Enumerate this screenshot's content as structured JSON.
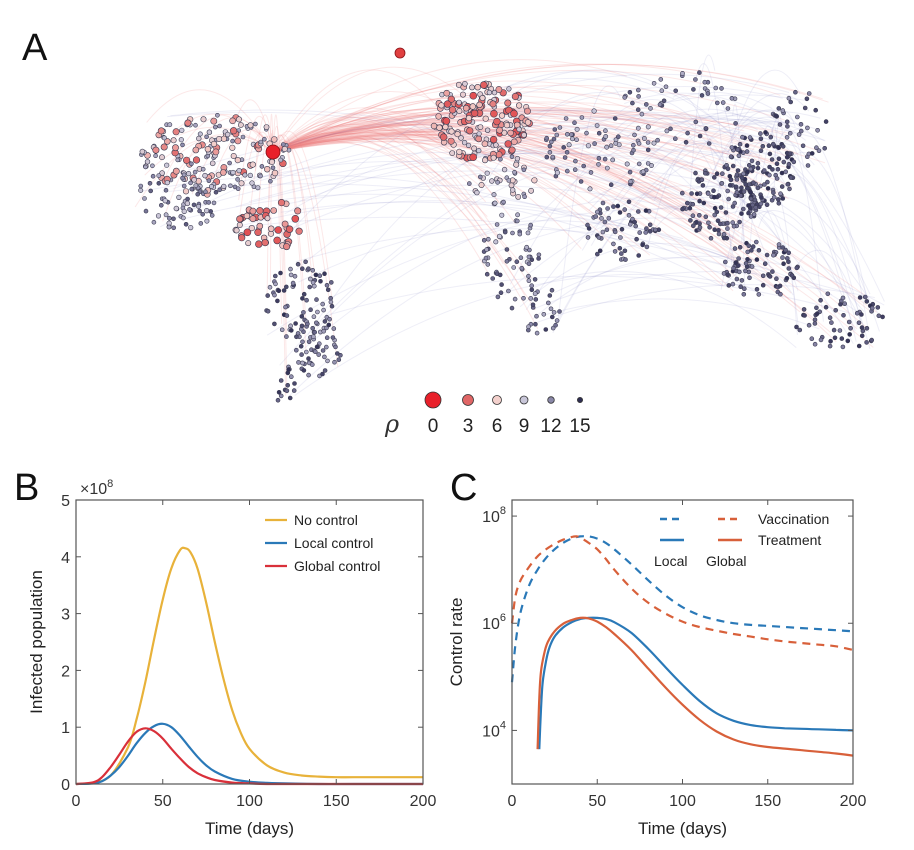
{
  "panels": {
    "A": {
      "letter": "A",
      "legend": {
        "symbol": "ρ",
        "levels": [
          {
            "label": "0",
            "value": 0,
            "color": "#e8202a"
          },
          {
            "label": "3",
            "value": 3,
            "color": "#e06666"
          },
          {
            "label": "6",
            "value": 6,
            "color": "#f3d0cc"
          },
          {
            "label": "9",
            "value": 9,
            "color": "#c8c6d8"
          },
          {
            "label": "12",
            "value": 12,
            "color": "#8a88a8"
          },
          {
            "label": "15",
            "value": 15,
            "color": "#2e2d52"
          }
        ]
      },
      "description": "Global airline network; nodes colored by effective distance rho from source (North America east coast)"
    },
    "B": {
      "letter": "B"
    },
    "C": {
      "letter": "C"
    }
  },
  "chart_data": [
    {
      "type": "line",
      "panel": "B",
      "title": "",
      "xlabel": "Time (days)",
      "ylabel": "Infected population",
      "y_multiplier_label": "×10",
      "y_multiplier_exp": "8",
      "xlim": [
        0,
        200
      ],
      "ylim": [
        0,
        5
      ],
      "xticks": [
        0,
        50,
        100,
        150,
        200
      ],
      "yticks": [
        0,
        1,
        2,
        3,
        4,
        5
      ],
      "legend_position": "top-right",
      "series": [
        {
          "name": "No control",
          "color": "#e8b23a",
          "x": [
            0,
            10,
            20,
            30,
            35,
            40,
            45,
            50,
            55,
            60,
            63,
            66,
            70,
            75,
            80,
            85,
            90,
            95,
            100,
            110,
            120,
            130,
            140,
            150,
            160,
            180,
            200
          ],
          "y": [
            0,
            0.02,
            0.15,
            0.65,
            1.15,
            1.8,
            2.55,
            3.25,
            3.8,
            4.12,
            4.15,
            4.08,
            3.8,
            3.2,
            2.5,
            1.85,
            1.3,
            0.9,
            0.62,
            0.33,
            0.2,
            0.15,
            0.13,
            0.12,
            0.12,
            0.12,
            0.12
          ]
        },
        {
          "name": "Local control",
          "color": "#2a79b8",
          "x": [
            0,
            10,
            15,
            20,
            25,
            30,
            35,
            40,
            45,
            50,
            55,
            60,
            65,
            70,
            75,
            80,
            90,
            100,
            110,
            120,
            140,
            160,
            200
          ],
          "y": [
            0,
            0.01,
            0.05,
            0.15,
            0.3,
            0.5,
            0.72,
            0.9,
            1.02,
            1.06,
            1.0,
            0.85,
            0.66,
            0.48,
            0.33,
            0.22,
            0.09,
            0.04,
            0.02,
            0.01,
            0,
            0,
            0
          ]
        },
        {
          "name": "Global control",
          "color": "#d9303a",
          "x": [
            0,
            10,
            15,
            20,
            25,
            30,
            35,
            40,
            45,
            50,
            55,
            60,
            65,
            70,
            75,
            80,
            90,
            100,
            110,
            120,
            140,
            160,
            200
          ],
          "y": [
            0,
            0.03,
            0.12,
            0.3,
            0.52,
            0.75,
            0.92,
            0.98,
            0.93,
            0.8,
            0.62,
            0.45,
            0.3,
            0.19,
            0.12,
            0.07,
            0.025,
            0.01,
            0,
            0,
            0,
            0,
            0
          ]
        }
      ]
    },
    {
      "type": "line",
      "panel": "C",
      "title": "",
      "xlabel": "Time (days)",
      "ylabel": "Control rate",
      "yscale": "log",
      "xlim": [
        0,
        200
      ],
      "ylim_log10": [
        3.0,
        8.3
      ],
      "xticks": [
        0,
        50,
        100,
        150,
        200
      ],
      "yticks": [
        {
          "value": 4,
          "label": "10",
          "exp": "4"
        },
        {
          "value": 6,
          "label": "10",
          "exp": "6"
        },
        {
          "value": 8,
          "label": "10",
          "exp": "8"
        }
      ],
      "legend_position": "top-right",
      "legend": {
        "columns": [
          "Local",
          "Global"
        ],
        "rows": [
          "Vaccination",
          "Treatment"
        ]
      },
      "series": [
        {
          "name": "Local Vaccination",
          "color": "#2a79b8",
          "dash": true,
          "x": [
            0,
            2,
            5,
            10,
            15,
            20,
            25,
            30,
            35,
            40,
            45,
            50,
            55,
            60,
            70,
            80,
            90,
            100,
            110,
            120,
            130,
            140,
            150,
            160,
            170,
            180,
            190,
            200
          ],
          "log10y": [
            4.9,
            5.6,
            6.2,
            6.7,
            7.0,
            7.22,
            7.38,
            7.5,
            7.58,
            7.62,
            7.62,
            7.58,
            7.5,
            7.38,
            7.1,
            6.8,
            6.52,
            6.3,
            6.15,
            6.06,
            6.0,
            5.97,
            5.95,
            5.93,
            5.91,
            5.89,
            5.87,
            5.85
          ]
        },
        {
          "name": "Global Vaccination",
          "color": "#d8603a",
          "dash": true,
          "x": [
            0,
            2,
            5,
            10,
            15,
            20,
            25,
            30,
            35,
            38,
            40,
            45,
            50,
            55,
            60,
            70,
            80,
            90,
            100,
            110,
            120,
            130,
            140,
            150,
            160,
            170,
            180,
            190,
            200
          ],
          "log10y": [
            6.0,
            6.5,
            6.8,
            7.05,
            7.25,
            7.38,
            7.48,
            7.56,
            7.61,
            7.62,
            7.6,
            7.5,
            7.38,
            7.2,
            7.0,
            6.65,
            6.38,
            6.18,
            6.03,
            5.93,
            5.86,
            5.8,
            5.75,
            5.7,
            5.66,
            5.63,
            5.6,
            5.57,
            5.5
          ]
        },
        {
          "name": "Local Treatment",
          "color": "#2a79b8",
          "dash": false,
          "x": [
            16,
            17,
            18,
            20,
            22,
            25,
            30,
            35,
            40,
            45,
            50,
            55,
            60,
            70,
            80,
            90,
            100,
            110,
            120,
            130,
            140,
            150,
            160,
            170,
            180,
            190,
            200
          ],
          "log10y": [
            3.65,
            4.4,
            4.9,
            5.3,
            5.55,
            5.75,
            5.92,
            6.02,
            6.08,
            6.1,
            6.1,
            6.08,
            6.02,
            5.82,
            5.52,
            5.18,
            4.85,
            4.55,
            4.32,
            4.18,
            4.1,
            4.06,
            4.04,
            4.03,
            4.02,
            4.01,
            4.0
          ]
        },
        {
          "name": "Global Treatment",
          "color": "#d8603a",
          "dash": false,
          "x": [
            15,
            16,
            17,
            19,
            21,
            25,
            30,
            35,
            40,
            45,
            50,
            55,
            60,
            70,
            80,
            90,
            100,
            110,
            120,
            130,
            140,
            150,
            160,
            170,
            180,
            190,
            200
          ],
          "log10y": [
            3.65,
            4.6,
            5.1,
            5.45,
            5.65,
            5.85,
            5.99,
            6.06,
            6.1,
            6.09,
            6.03,
            5.93,
            5.8,
            5.5,
            5.15,
            4.8,
            4.48,
            4.2,
            3.98,
            3.83,
            3.74,
            3.69,
            3.66,
            3.63,
            3.6,
            3.57,
            3.53
          ]
        }
      ]
    }
  ]
}
